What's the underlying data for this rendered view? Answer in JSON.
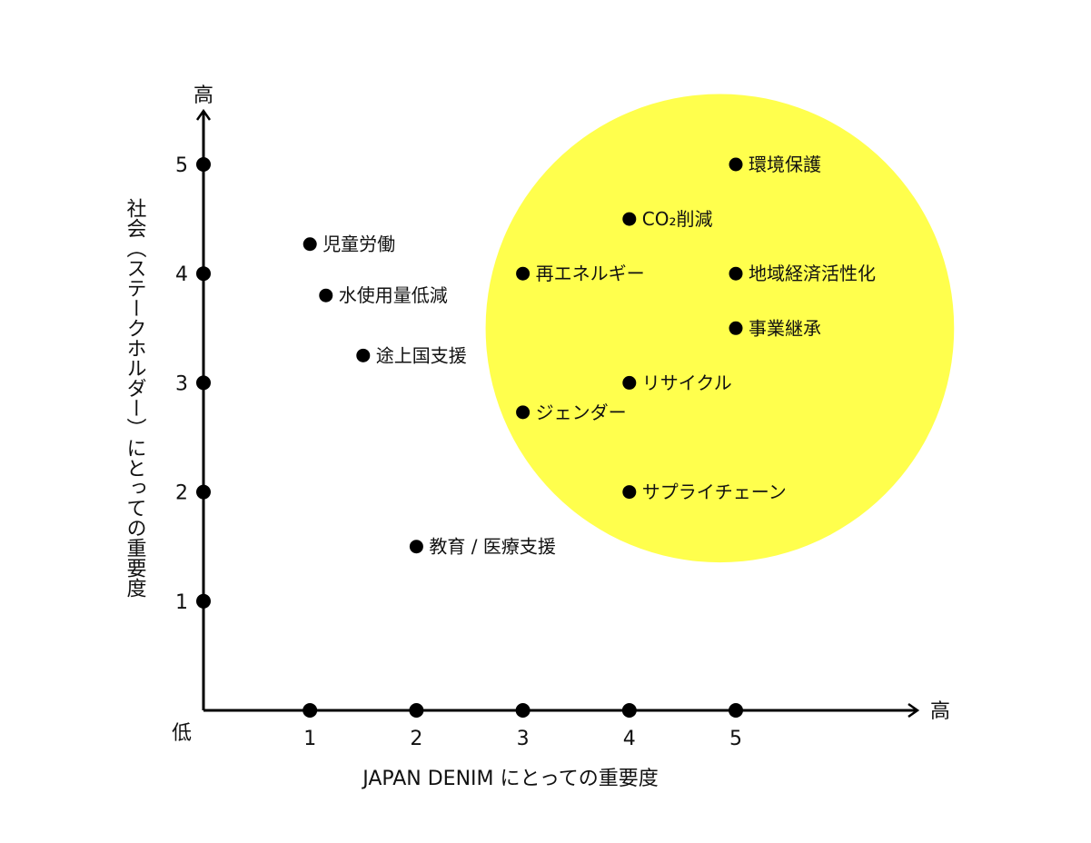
{
  "chart_data": {
    "type": "scatter",
    "title": "",
    "xlabel": "JAPAN DENIM にとっての重要度",
    "ylabel": "社会（ステークホルダー）にとっての重要度",
    "xlim": [
      0,
      6.5
    ],
    "ylim": [
      0,
      5.5
    ],
    "x_ticks": [
      1,
      2,
      3,
      4,
      5
    ],
    "y_ticks": [
      1,
      2,
      3,
      4,
      5
    ],
    "x_axis_high_label": "高",
    "y_axis_high_label": "高",
    "origin_label": "低",
    "grid": false,
    "highlight": {
      "shape": "circle",
      "color": "#FFFF4D",
      "center": [
        4.85,
        3.5
      ],
      "radius": 2.2
    },
    "marker_color": "#000000",
    "points": [
      {
        "label": "環境保護",
        "x": 5,
        "y": 5
      },
      {
        "label": "CO₂削減",
        "x": 4,
        "y": 4.5
      },
      {
        "label": "再エネルギー",
        "x": 3,
        "y": 4
      },
      {
        "label": "地域経済活性化",
        "x": 5,
        "y": 4
      },
      {
        "label": "事業継承",
        "x": 5,
        "y": 3.5
      },
      {
        "label": "リサイクル",
        "x": 4,
        "y": 3
      },
      {
        "label": "ジェンダー",
        "x": 3,
        "y": 2.73
      },
      {
        "label": "サプライチェーン",
        "x": 4,
        "y": 2
      },
      {
        "label": "児童労働",
        "x": 1,
        "y": 4.27
      },
      {
        "label": "水使用量低減",
        "x": 1.15,
        "y": 3.8
      },
      {
        "label": "途上国支援",
        "x": 1.5,
        "y": 3.25
      },
      {
        "label": "教育 / 医療支援",
        "x": 2,
        "y": 1.5
      }
    ]
  }
}
